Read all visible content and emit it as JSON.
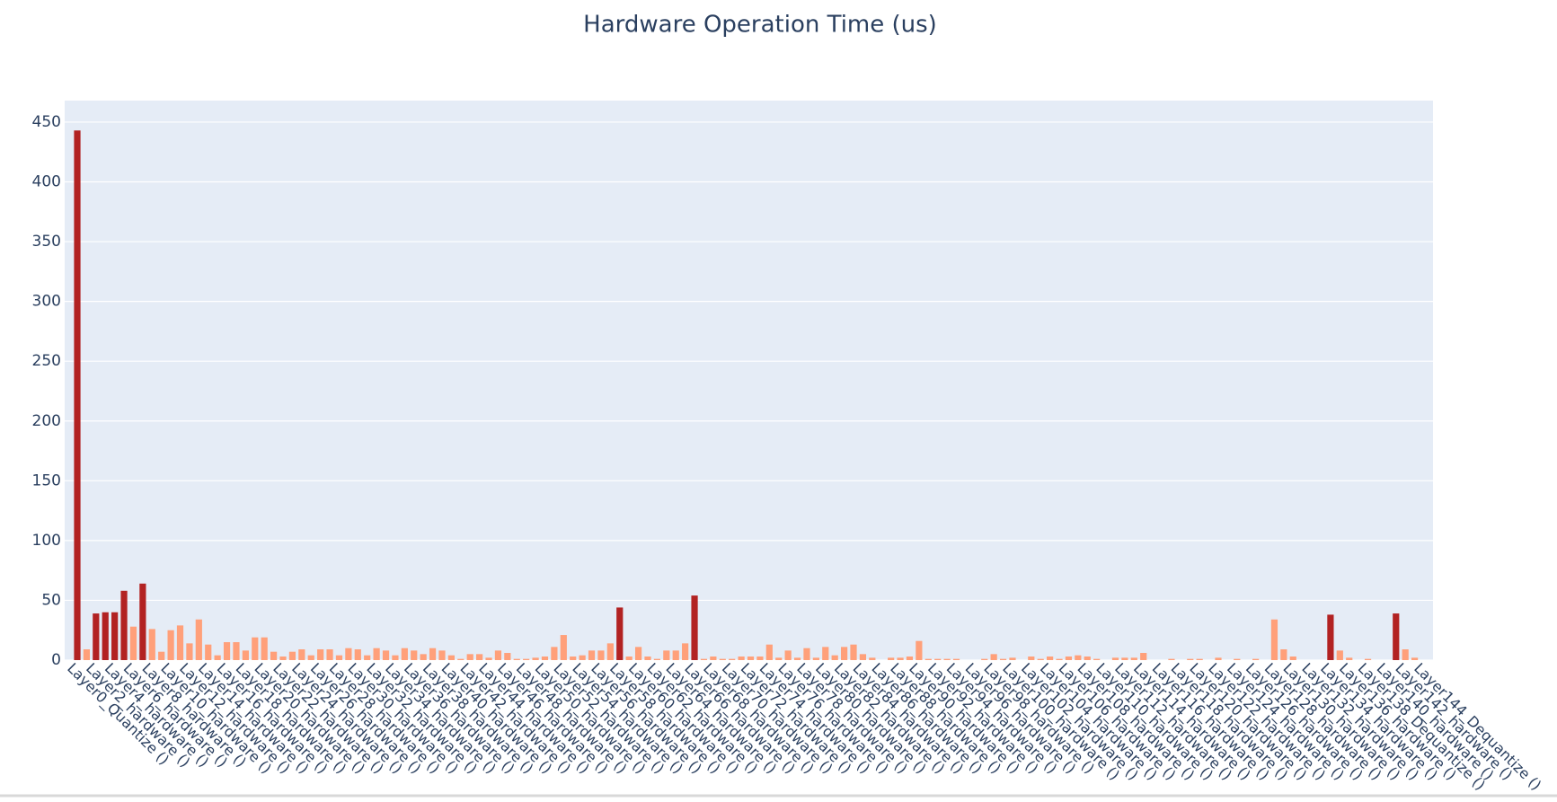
{
  "chart_data": {
    "type": "bar",
    "title": "Hardware Operation Time (us)",
    "categories": [
      "Layer0_Quantize ()",
      null,
      "Layer2_hardware ()",
      null,
      "Layer4_hardware ()",
      null,
      "Layer6_hardware ()",
      null,
      "Layer8_hardware ()",
      null,
      "Layer10_hardware ()",
      null,
      "Layer12_hardware ()",
      null,
      "Layer14_hardware ()",
      null,
      "Layer16_hardware ()",
      null,
      "Layer18_hardware ()",
      null,
      "Layer20_hardware ()",
      null,
      "Layer22_hardware ()",
      null,
      "Layer24_hardware ()",
      null,
      "Layer26_hardware ()",
      null,
      "Layer28_hardware ()",
      null,
      "Layer30_hardware ()",
      null,
      "Layer32_hardware ()",
      null,
      "Layer34_hardware ()",
      null,
      "Layer36_hardware ()",
      null,
      "Layer38_hardware ()",
      null,
      "Layer40_hardware ()",
      null,
      "Layer42_hardware ()",
      null,
      "Layer44_hardware ()",
      null,
      "Layer46_hardware ()",
      null,
      "Layer48_hardware ()",
      null,
      "Layer50_hardware ()",
      null,
      "Layer52_hardware ()",
      null,
      "Layer54_hardware ()",
      null,
      "Layer56_hardware ()",
      null,
      "Layer58_hardware ()",
      null,
      "Layer60_hardware ()",
      null,
      "Layer62_hardware ()",
      null,
      "Layer64_hardware ()",
      null,
      "Layer66_hardware ()",
      null,
      "Layer68_hardware ()",
      null,
      "Layer70_hardware ()",
      null,
      "Layer72_hardware ()",
      null,
      "Layer74_hardware ()",
      null,
      "Layer76_hardware ()",
      null,
      "Layer78_hardware ()",
      null,
      "Layer80_hardware ()",
      null,
      "Layer82_hardware ()",
      null,
      "Layer84_hardware ()",
      null,
      "Layer86_hardware ()",
      null,
      "Layer88_hardware ()",
      null,
      "Layer90_hardware ()",
      null,
      "Layer92_hardware ()",
      null,
      "Layer94_hardware ()",
      null,
      "Layer96_hardware ()",
      null,
      "Layer98_hardware ()",
      null,
      "Layer100_hardware ()",
      null,
      "Layer102_hardware ()",
      null,
      "Layer104_hardware ()",
      null,
      "Layer106_hardware ()",
      null,
      "Layer108_hardware ()",
      null,
      "Layer110_hardware ()",
      null,
      "Layer112_hardware ()",
      null,
      "Layer114_hardware ()",
      null,
      "Layer116_hardware ()",
      null,
      "Layer118_hardware ()",
      null,
      "Layer120_hardware ()",
      null,
      "Layer122_hardware ()",
      null,
      "Layer124_hardware ()",
      null,
      "Layer126_hardware ()",
      null,
      "Layer128_hardware ()",
      null,
      "Layer130_hardware ()",
      null,
      "Layer132_hardware ()",
      null,
      "Layer134_hardware ()",
      null,
      "Layer136_hardware ()",
      null,
      "Layer138_Dequantize ()",
      null,
      "Layer140_hardware ()",
      null,
      "Layer142_hardware ()",
      null,
      "Layer144_Dequantize ()"
    ],
    "values": [
      443,
      9,
      39,
      40,
      40,
      58,
      28,
      64,
      26,
      7,
      25,
      29,
      14,
      34,
      13,
      4,
      15,
      15,
      8,
      19,
      19,
      7,
      3,
      7,
      9,
      4,
      9,
      9,
      4,
      10,
      9,
      4,
      10,
      8,
      4,
      10,
      8,
      5,
      10,
      8,
      4,
      1,
      5,
      5,
      2,
      8,
      6,
      1,
      1,
      2,
      3,
      11,
      21,
      3,
      4,
      8,
      8,
      14,
      44,
      3,
      11,
      3,
      1,
      8,
      8,
      14,
      54,
      1,
      3,
      1,
      1,
      3,
      3,
      3,
      13,
      2,
      8,
      2,
      10,
      2,
      11,
      4,
      11,
      13,
      5,
      2,
      0,
      2,
      2,
      3,
      16,
      1,
      1,
      1,
      1,
      0,
      0,
      1,
      5,
      1,
      2,
      0,
      3,
      1,
      3,
      1,
      3,
      4,
      3,
      1,
      0,
      2,
      2,
      2,
      6,
      0,
      0,
      1,
      0,
      1,
      1,
      0,
      2,
      0,
      1,
      0,
      1,
      0,
      34,
      9,
      3,
      0,
      0,
      0,
      38,
      8,
      2,
      0,
      1,
      0,
      0,
      39,
      9,
      2,
      0
    ],
    "colors": [
      "#b22222",
      "#ffa07a",
      "#b22222",
      "#b22222",
      "#b22222",
      "#b22222",
      "#ffa07a",
      "#b22222",
      "#ffa07a",
      "#ffa07a",
      "#ffa07a",
      "#ffa07a",
      "#ffa07a",
      "#ffa07a",
      "#ffa07a",
      "#ffa07a",
      "#ffa07a",
      "#ffa07a",
      "#ffa07a",
      "#ffa07a",
      "#ffa07a",
      "#ffa07a",
      "#ffa07a",
      "#ffa07a",
      "#ffa07a",
      "#ffa07a",
      "#ffa07a",
      "#ffa07a",
      "#ffa07a",
      "#ffa07a",
      "#ffa07a",
      "#ffa07a",
      "#ffa07a",
      "#ffa07a",
      "#ffa07a",
      "#ffa07a",
      "#ffa07a",
      "#ffa07a",
      "#ffa07a",
      "#ffa07a",
      "#ffa07a",
      "#ffa07a",
      "#ffa07a",
      "#ffa07a",
      "#ffa07a",
      "#ffa07a",
      "#ffa07a",
      "#ffa07a",
      "#ffa07a",
      "#ffa07a",
      "#ffa07a",
      "#ffa07a",
      "#ffa07a",
      "#ffa07a",
      "#ffa07a",
      "#ffa07a",
      "#ffa07a",
      "#ffa07a",
      "#b22222",
      "#ffa07a",
      "#ffa07a",
      "#ffa07a",
      "#ffa07a",
      "#ffa07a",
      "#ffa07a",
      "#ffa07a",
      "#b22222",
      "#ffa07a",
      "#ffa07a",
      "#ffa07a",
      "#ffa07a",
      "#ffa07a",
      "#ffa07a",
      "#ffa07a",
      "#ffa07a",
      "#ffa07a",
      "#ffa07a",
      "#ffa07a",
      "#ffa07a",
      "#ffa07a",
      "#ffa07a",
      "#ffa07a",
      "#ffa07a",
      "#ffa07a",
      "#ffa07a",
      "#ffa07a",
      "#ffa07a",
      "#ffa07a",
      "#ffa07a",
      "#ffa07a",
      "#ffa07a",
      "#ffa07a",
      "#ffa07a",
      "#ffa07a",
      "#ffa07a",
      "#ffa07a",
      "#ffa07a",
      "#ffa07a",
      "#ffa07a",
      "#ffa07a",
      "#ffa07a",
      "#ffa07a",
      "#ffa07a",
      "#ffa07a",
      "#ffa07a",
      "#ffa07a",
      "#ffa07a",
      "#ffa07a",
      "#ffa07a",
      "#ffa07a",
      "#ffa07a",
      "#ffa07a",
      "#ffa07a",
      "#ffa07a",
      "#ffa07a",
      "#ffa07a",
      "#ffa07a",
      "#ffa07a",
      "#ffa07a",
      "#ffa07a",
      "#ffa07a",
      "#ffa07a",
      "#ffa07a",
      "#ffa07a",
      "#ffa07a",
      "#ffa07a",
      "#ffa07a",
      "#ffa07a",
      "#ffa07a",
      "#ffa07a",
      "#ffa07a",
      "#ffa07a",
      "#ffa07a",
      "#ffa07a",
      "#b22222",
      "#ffa07a",
      "#ffa07a",
      "#ffa07a",
      "#ffa07a",
      "#ffa07a",
      "#ffa07a",
      "#b22222",
      "#ffa07a",
      "#ffa07a",
      "#ffa07a"
    ],
    "ylim": [
      0,
      468
    ],
    "yticks": [
      0,
      50,
      100,
      150,
      200,
      250,
      300,
      350,
      400,
      450
    ],
    "grid": true
  }
}
